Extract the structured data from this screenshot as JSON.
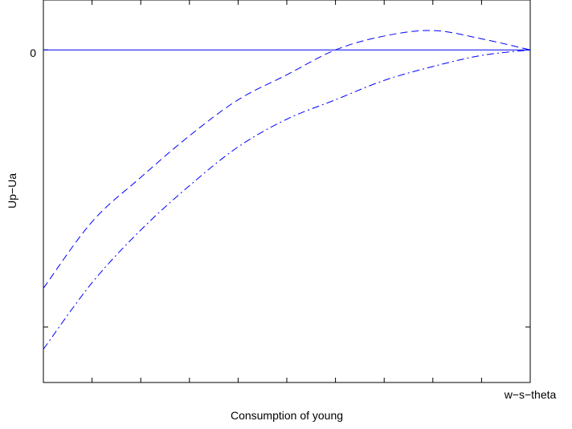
{
  "chart_data": {
    "type": "line",
    "title": "",
    "xlabel": "Consumption of young",
    "ylabel": "Up−Ua",
    "x_end_label": "w−s−theta",
    "y_tick_label": "0",
    "xlim": [
      0,
      1
    ],
    "ylim": [
      -1.2,
      0.18
    ],
    "grid": false,
    "legend": "none",
    "x_ticks": [
      0,
      0.1,
      0.2,
      0.3,
      0.4,
      0.5,
      0.6,
      0.7,
      0.8,
      0.9,
      1.0
    ],
    "y_ticks": [
      0,
      -1
    ],
    "series": [
      {
        "style": "solid",
        "color": "#0000ff",
        "x": [
          0,
          1
        ],
        "y": [
          0,
          0
        ]
      },
      {
        "style": "dashed",
        "color": "#0000ff",
        "x": [
          0,
          0.1,
          0.2,
          0.3,
          0.4,
          0.5,
          0.6,
          0.7,
          0.8,
          0.9,
          1.0
        ],
        "y": [
          -0.86,
          -0.62,
          -0.46,
          -0.31,
          -0.18,
          -0.09,
          0.0,
          0.05,
          0.07,
          0.04,
          0.0
        ]
      },
      {
        "style": "dashdot",
        "color": "#0000ff",
        "x": [
          0,
          0.1,
          0.2,
          0.3,
          0.4,
          0.5,
          0.6,
          0.7,
          0.8,
          0.9,
          1.0
        ],
        "y": [
          -1.08,
          -0.84,
          -0.65,
          -0.49,
          -0.35,
          -0.25,
          -0.18,
          -0.11,
          -0.06,
          -0.02,
          0.0
        ]
      }
    ]
  }
}
